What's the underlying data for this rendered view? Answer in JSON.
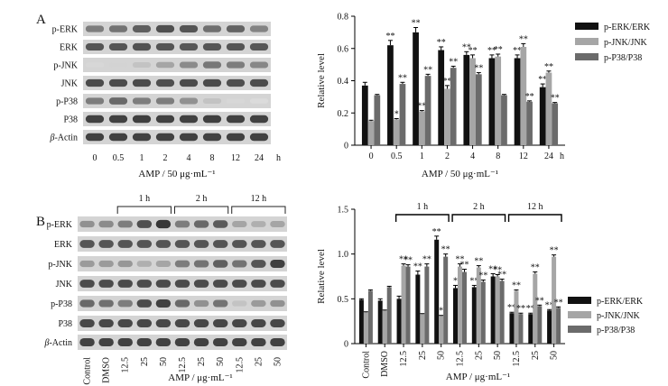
{
  "panels": {
    "A": {
      "letter": "A",
      "blot_labels": [
        "p-ERK",
        "ERK",
        "p-JNK",
        "JNK",
        "p-P38",
        "P38",
        "β-Actin"
      ],
      "blot_intensity": [
        [
          0.55,
          0.6,
          0.7,
          0.78,
          0.75,
          0.62,
          0.68,
          0.52
        ],
        [
          0.75,
          0.75,
          0.76,
          0.75,
          0.74,
          0.75,
          0.75,
          0.74
        ],
        [
          0.1,
          0.12,
          0.2,
          0.35,
          0.48,
          0.58,
          0.55,
          0.5
        ],
        [
          0.8,
          0.8,
          0.8,
          0.78,
          0.8,
          0.8,
          0.78,
          0.79
        ],
        [
          0.55,
          0.65,
          0.55,
          0.55,
          0.45,
          0.2,
          0.1,
          0.08
        ],
        [
          0.85,
          0.85,
          0.86,
          0.85,
          0.85,
          0.86,
          0.85,
          0.85
        ],
        [
          0.85,
          0.85,
          0.85,
          0.85,
          0.85,
          0.85,
          0.85,
          0.85
        ]
      ],
      "lane_labels": [
        "0",
        "0.5",
        "1",
        "2",
        "4",
        "8",
        "12",
        "24"
      ],
      "lane_unit": "h",
      "xlabel": "AMP / 50 μg·mL⁻¹"
    },
    "B": {
      "letter": "B",
      "blot_labels": [
        "p-ERK",
        "ERK",
        "p-JNK",
        "JNK",
        "p-P38",
        "P38",
        "β-Actin"
      ],
      "blot_intensity": [
        [
          0.45,
          0.48,
          0.55,
          0.78,
          0.9,
          0.55,
          0.65,
          0.72,
          0.35,
          0.3,
          0.35
        ],
        [
          0.75,
          0.75,
          0.75,
          0.75,
          0.75,
          0.75,
          0.75,
          0.75,
          0.75,
          0.75,
          0.75
        ],
        [
          0.4,
          0.4,
          0.42,
          0.3,
          0.35,
          0.55,
          0.6,
          0.7,
          0.6,
          0.75,
          0.85
        ],
        [
          0.8,
          0.8,
          0.8,
          0.8,
          0.8,
          0.8,
          0.8,
          0.8,
          0.8,
          0.8,
          0.8
        ],
        [
          0.65,
          0.62,
          0.55,
          0.8,
          0.85,
          0.65,
          0.45,
          0.6,
          0.2,
          0.4,
          0.45
        ],
        [
          0.82,
          0.82,
          0.82,
          0.82,
          0.82,
          0.82,
          0.82,
          0.82,
          0.82,
          0.82,
          0.82
        ],
        [
          0.85,
          0.85,
          0.85,
          0.85,
          0.85,
          0.85,
          0.85,
          0.85,
          0.85,
          0.85,
          0.85
        ]
      ],
      "group_labels": [
        "1 h",
        "2 h",
        "12 h"
      ],
      "lane_labels": [
        "Control",
        "DMSO",
        "12.5",
        "25",
        "50",
        "12.5",
        "25",
        "50",
        "12.5",
        "25",
        "50"
      ],
      "xlabel": "AMP / μg·mL⁻¹"
    }
  },
  "legend": [
    "p-ERK/ERK",
    "p-JNK/JNK",
    "p-P38/P38"
  ],
  "colors": {
    "erk": "#111111",
    "jnk": "#a6a6a6",
    "p38": "#6b6b6b",
    "axis": "#000000"
  },
  "chart_data": [
    {
      "type": "bar",
      "panel": "A",
      "categories": [
        "0",
        "0.5",
        "1",
        "2",
        "4",
        "8",
        "12",
        "24"
      ],
      "x_unit": "h",
      "xlabel": "AMP / 50 μg·mL⁻¹",
      "ylabel": "Relative level",
      "ylim": [
        0,
        0.8
      ],
      "yticks": [
        "0",
        "0.2",
        "0.4",
        "0.6",
        "0.8"
      ],
      "series": [
        {
          "name": "p-ERK/ERK",
          "values": [
            0.37,
            0.62,
            0.7,
            0.59,
            0.56,
            0.54,
            0.54,
            0.36
          ],
          "errors": [
            0.02,
            0.03,
            0.03,
            0.02,
            0.02,
            0.02,
            0.02,
            0.02
          ],
          "sig": [
            "",
            "**",
            "**",
            "**",
            "**",
            "**",
            "**",
            "**"
          ]
        },
        {
          "name": "p-JNK/JNK",
          "values": [
            0.15,
            0.16,
            0.21,
            0.35,
            0.54,
            0.55,
            0.61,
            0.45
          ],
          "errors": [
            0.005,
            0.005,
            0.005,
            0.02,
            0.02,
            0.015,
            0.02,
            0.01
          ],
          "sig": [
            "",
            "*",
            "**",
            "**",
            "**",
            "**",
            "**",
            "**"
          ]
        },
        {
          "name": "p-P38/P38",
          "values": [
            0.31,
            0.38,
            0.43,
            0.48,
            0.44,
            0.31,
            0.27,
            0.26
          ],
          "errors": [
            0.005,
            0.01,
            0.01,
            0.01,
            0.01,
            0.005,
            0.005,
            0.005
          ],
          "sig": [
            "",
            "**",
            "**",
            "**",
            "**",
            "",
            "**",
            "**"
          ]
        }
      ],
      "legend_position": "top-right"
    },
    {
      "type": "bar",
      "panel": "B",
      "categories": [
        "Control",
        "DMSO",
        "12.5",
        "25",
        "50",
        "12.5",
        "25",
        "50",
        "12.5",
        "25",
        "50"
      ],
      "groups": [
        {
          "label": "1 h",
          "from": 2,
          "to": 4
        },
        {
          "label": "2 h",
          "from": 5,
          "to": 7
        },
        {
          "label": "12 h",
          "from": 8,
          "to": 10
        }
      ],
      "xlabel": "AMP / μg·mL⁻¹",
      "ylabel": "Relative level",
      "ylim": [
        0,
        1.5
      ],
      "yticks": [
        "0",
        "0.5",
        "1.0",
        "1.5"
      ],
      "series": [
        {
          "name": "p-ERK/ERK",
          "values": [
            0.49,
            0.48,
            0.5,
            0.77,
            1.16,
            0.62,
            0.63,
            0.75,
            0.34,
            0.33,
            0.37
          ],
          "errors": [
            0.01,
            0.02,
            0.03,
            0.04,
            0.04,
            0.03,
            0.02,
            0.03,
            0.01,
            0.01,
            0.01
          ],
          "sig": [
            "",
            "",
            "",
            "**",
            "**",
            "*",
            "**",
            "**",
            "**",
            "**",
            "**"
          ]
        },
        {
          "name": "p-JNK/JNK",
          "values": [
            0.35,
            0.37,
            0.87,
            0.33,
            0.31,
            0.86,
            0.85,
            0.75,
            0.59,
            0.78,
            0.97
          ],
          "errors": [
            0.005,
            0.005,
            0.02,
            0.005,
            0.005,
            0.03,
            0.02,
            0.02,
            0.01,
            0.02,
            0.02
          ],
          "sig": [
            "",
            "",
            "**",
            "",
            "*",
            "**",
            "**",
            "**",
            "**",
            "**",
            "**"
          ]
        },
        {
          "name": "p-P38/P38",
          "values": [
            0.59,
            0.63,
            0.86,
            0.86,
            0.97,
            0.8,
            0.69,
            0.7,
            0.33,
            0.42,
            0.4
          ],
          "errors": [
            0.01,
            0.01,
            0.02,
            0.03,
            0.03,
            0.03,
            0.02,
            0.02,
            0.01,
            0.01,
            0.01
          ],
          "sig": [
            "",
            "",
            "**",
            "**",
            "**",
            "**",
            "**",
            "**",
            "**",
            "**",
            "**"
          ]
        }
      ],
      "legend_position": "top-right"
    }
  ]
}
